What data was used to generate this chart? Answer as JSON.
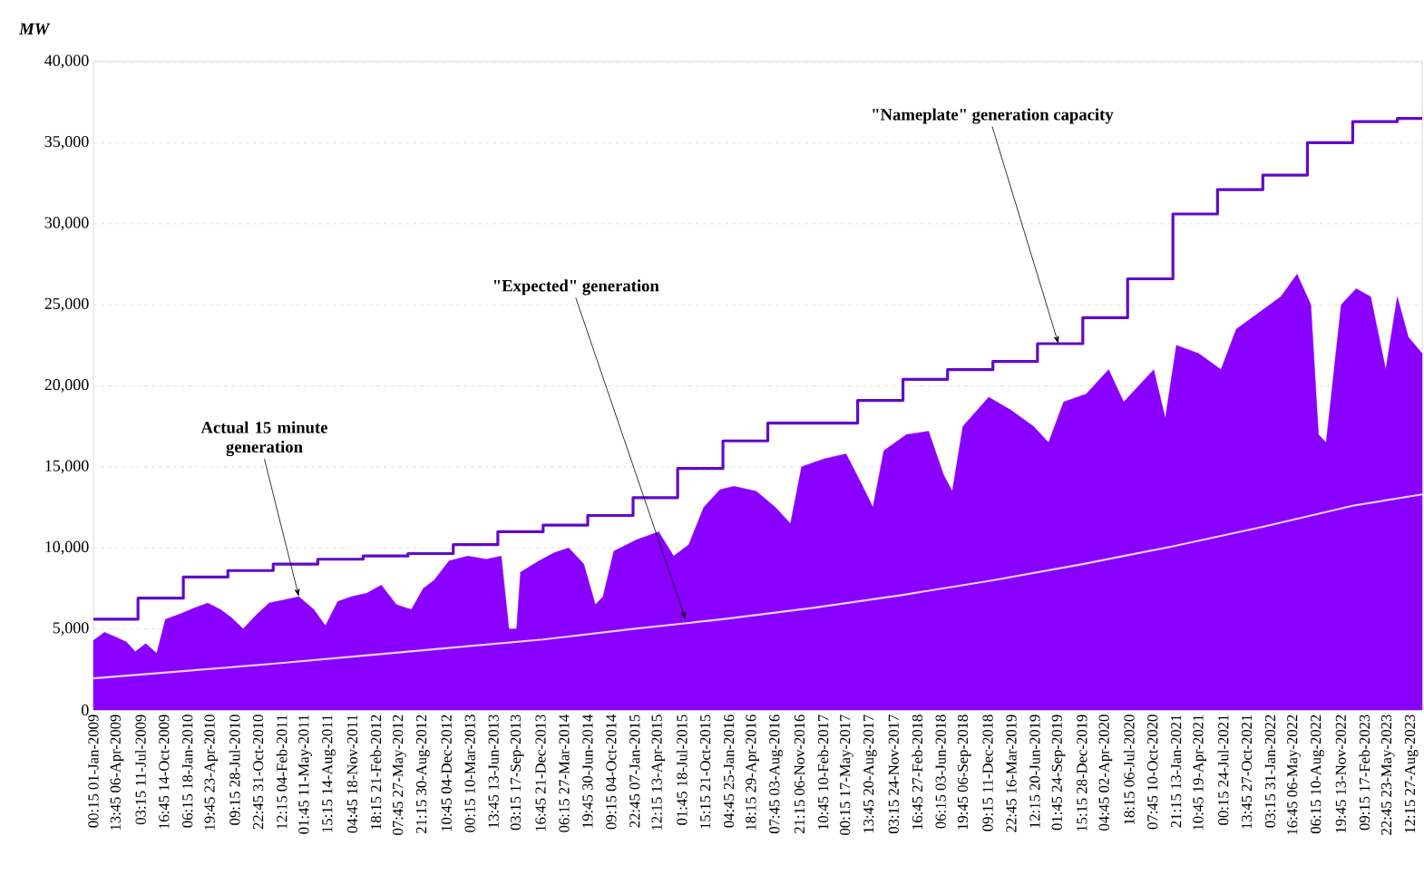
{
  "chart_data": {
    "type": "area",
    "ylabel": "MW",
    "xlim": [
      "2009-01-01",
      "2023-10-10"
    ],
    "ylim": [
      0,
      40000
    ],
    "yticks": [
      0,
      {
        "value": 5000,
        "label": "5,000"
      },
      {
        "value": 10000,
        "label": "10,000"
      },
      {
        "value": 15000,
        "label": "15,000"
      },
      {
        "value": 20000,
        "label": "20,000"
      },
      {
        "value": 25000,
        "label": "25,000"
      },
      {
        "value": 30000,
        "label": "30,000"
      },
      {
        "value": 35000,
        "label": "35,000"
      },
      {
        "value": 40000,
        "label": "40,000"
      }
    ],
    "xticks": [
      {
        "value": "2009-01-01T00:15",
        "label": "00:15 01-Jan-2009"
      },
      {
        "value": "2009-04-06T13:45",
        "label": "13:45 06-Apr-2009"
      },
      {
        "value": "2009-07-11T03:15",
        "label": "03:15 11-Jul-2009"
      },
      {
        "value": "2009-10-14T16:45",
        "label": "16:45 14-Oct-2009"
      },
      {
        "value": "2010-01-18T06:15",
        "label": "06:15 18-Jan-2010"
      },
      {
        "value": "2010-04-23T19:45",
        "label": "19:45 23-Apr-2010"
      },
      {
        "value": "2010-07-28T09:15",
        "label": "09:15 28-Jul-2010"
      },
      {
        "value": "2010-10-31T22:45",
        "label": "22:45 31-Oct-2010"
      },
      {
        "value": "2011-02-04T12:15",
        "label": "12:15 04-Feb-2011"
      },
      {
        "value": "2011-05-11T01:45",
        "label": "01:45 11-May-2011"
      },
      {
        "value": "2011-08-14T15:15",
        "label": "15:15 14-Aug-2011"
      },
      {
        "value": "2011-11-18T04:45",
        "label": "04:45 18-Nov-2011"
      },
      {
        "value": "2012-02-21T18:15",
        "label": "18:15 21-Feb-2012"
      },
      {
        "value": "2012-05-27T07:45",
        "label": "07:45 27-May-2012"
      },
      {
        "value": "2012-08-30T21:15",
        "label": "21:15 30-Aug-2012"
      },
      {
        "value": "2012-12-04T10:45",
        "label": "10:45 04-Dec-2012"
      },
      {
        "value": "2013-03-10T00:15",
        "label": "00:15 10-Mar-2013"
      },
      {
        "value": "2013-06-13T13:45",
        "label": "13:45 13-Jun-2013"
      },
      {
        "value": "2013-09-17T03:15",
        "label": "03:15 17-Sep-2013"
      },
      {
        "value": "2013-12-21T16:45",
        "label": "16:45 21-Dec-2013"
      },
      {
        "value": "2014-03-27T06:15",
        "label": "06:15 27-Mar-2014"
      },
      {
        "value": "2014-06-30T19:45",
        "label": "19:45 30-Jun-2014"
      },
      {
        "value": "2014-10-04T09:15",
        "label": "09:15 04-Oct-2014"
      },
      {
        "value": "2015-01-07T22:45",
        "label": "22:45 07-Jan-2015"
      },
      {
        "value": "2015-04-13T12:15",
        "label": "12:15 13-Apr-2015"
      },
      {
        "value": "2015-07-18T01:45",
        "label": "01:45 18-Jul-2015"
      },
      {
        "value": "2015-10-21T15:15",
        "label": "15:15 21-Oct-2015"
      },
      {
        "value": "2016-01-25T04:45",
        "label": "04:45 25-Jan-2016"
      },
      {
        "value": "2016-04-29T18:15",
        "label": "18:15 29-Apr-2016"
      },
      {
        "value": "2016-08-03T07:45",
        "label": "07:45 03-Aug-2016"
      },
      {
        "value": "2016-11-06T21:15",
        "label": "21:15 06-Nov-2016"
      },
      {
        "value": "2017-02-10T10:45",
        "label": "10:45 10-Feb-2017"
      },
      {
        "value": "2017-05-17T00:15",
        "label": "00:15 17-May-2017"
      },
      {
        "value": "2017-08-20T13:45",
        "label": "13:45 20-Aug-2017"
      },
      {
        "value": "2017-11-24T03:15",
        "label": "03:15 24-Nov-2017"
      },
      {
        "value": "2018-02-27T16:45",
        "label": "16:45 27-Feb-2018"
      },
      {
        "value": "2018-06-03T06:15",
        "label": "06:15 03-Jun-2018"
      },
      {
        "value": "2018-09-06T19:45",
        "label": "19:45 06-Sep-2018"
      },
      {
        "value": "2018-12-11T09:15",
        "label": "09:15 11-Dec-2018"
      },
      {
        "value": "2019-03-16T22:45",
        "label": "22:45 16-Mar-2019"
      },
      {
        "value": "2019-06-20T12:15",
        "label": "12:15 20-Jun-2019"
      },
      {
        "value": "2019-09-24T01:45",
        "label": "01:45 24-Sep-2019"
      },
      {
        "value": "2019-12-28T15:15",
        "label": "15:15 28-Dec-2019"
      },
      {
        "value": "2020-04-02T04:45",
        "label": "04:45 02-Apr-2020"
      },
      {
        "value": "2020-07-06T18:15",
        "label": "18:15 06-Jul-2020"
      },
      {
        "value": "2020-10-10T07:45",
        "label": "07:45 10-Oct-2020"
      },
      {
        "value": "2021-01-13T21:15",
        "label": "21:15 13-Jan-2021"
      },
      {
        "value": "2021-04-19T10:45",
        "label": "10:45 19-Apr-2021"
      },
      {
        "value": "2021-07-24T00:15",
        "label": "00:15 24-Jul-2021"
      },
      {
        "value": "2021-10-27T13:45",
        "label": "13:45 27-Oct-2021"
      },
      {
        "value": "2022-01-31T03:15",
        "label": "03:15 31-Jan-2022"
      },
      {
        "value": "2022-05-06T16:45",
        "label": "16:45 06-May-2022"
      },
      {
        "value": "2022-08-10T06:15",
        "label": "06:15 10-Aug-2022"
      },
      {
        "value": "2022-11-13T19:45",
        "label": "19:45 13-Nov-2022"
      },
      {
        "value": "2023-02-17T09:15",
        "label": "09:15 17-Feb-2023"
      },
      {
        "value": "2023-05-23T22:45",
        "label": "22:45 23-May-2023"
      },
      {
        "value": "2023-08-27T12:15",
        "label": "12:15 27-Aug-2023"
      }
    ],
    "grid": "y",
    "series": [
      {
        "color": "#8a00ff",
        "x": [
          "2009-01-01",
          "2009-02-15",
          "2009-04-01",
          "2009-05-15",
          "2009-06-20",
          "2009-08-01",
          "2009-09-15",
          "2009-10-20",
          "2009-12-15",
          "2010-02-15",
          "2010-04-10",
          "2010-06-01",
          "2010-07-15",
          "2010-09-01",
          "2010-10-20",
          "2010-12-15",
          "2011-02-15",
          "2011-04-15",
          "2011-06-15",
          "2011-08-01",
          "2011-09-20",
          "2011-11-15",
          "2012-01-15",
          "2012-03-15",
          "2012-05-15",
          "2012-07-15",
          "2012-09-01",
          "2012-10-15",
          "2012-12-15",
          "2013-03-01",
          "2013-05-15",
          "2013-07-15",
          "2013-08-15",
          "2013-09-15",
          "2013-10-01",
          "2013-12-15",
          "2014-02-15",
          "2014-04-15",
          "2014-06-15",
          "2014-08-01",
          "2014-09-01",
          "2014-10-15",
          "2015-01-15",
          "2015-04-15",
          "2015-06-15",
          "2015-08-15",
          "2015-10-15",
          "2015-12-20",
          "2016-02-15",
          "2016-05-15",
          "2016-08-01",
          "2016-10-01",
          "2016-11-15",
          "2017-02-15",
          "2017-05-15",
          "2017-07-15",
          "2017-09-01",
          "2017-10-15",
          "2018-01-15",
          "2018-04-15",
          "2018-06-15",
          "2018-07-20",
          "2018-09-01",
          "2018-12-15",
          "2019-03-15",
          "2019-06-15",
          "2019-08-15",
          "2019-10-15",
          "2020-01-15",
          "2020-04-15",
          "2020-06-15",
          "2020-08-15",
          "2020-10-15",
          "2020-12-01",
          "2021-01-15",
          "2021-04-15",
          "2021-07-15",
          "2021-09-15",
          "2021-12-15",
          "2022-03-15",
          "2022-05-20",
          "2022-07-15",
          "2022-08-15",
          "2022-09-15",
          "2022-11-15",
          "2023-01-15",
          "2023-03-15",
          "2023-05-15",
          "2023-07-01",
          "2023-08-15",
          "2023-10-10"
        ],
        "values": [
          4300,
          4800,
          4500,
          4200,
          3600,
          4100,
          3500,
          5600,
          5900,
          6300,
          6600,
          6200,
          5700,
          5000,
          5800,
          6600,
          6800,
          7000,
          6200,
          5200,
          6700,
          7000,
          7200,
          7700,
          6500,
          6200,
          7500,
          8000,
          9200,
          9500,
          9300,
          9500,
          5000,
          5000,
          8500,
          9200,
          9700,
          10000,
          9000,
          6500,
          7000,
          9800,
          10500,
          11000,
          9500,
          10200,
          12500,
          13600,
          13800,
          13500,
          12500,
          11500,
          15000,
          15500,
          15800,
          14000,
          12500,
          16000,
          17000,
          17200,
          14500,
          13500,
          17500,
          19300,
          18500,
          17500,
          16500,
          19000,
          19500,
          21000,
          19000,
          20000,
          21000,
          18000,
          22500,
          22000,
          21000,
          23500,
          24500,
          25500,
          26900,
          25000,
          17000,
          16500,
          25000,
          26000,
          25500,
          21000,
          25500,
          23000,
          22000
        ]
      },
      {
        "type": "line",
        "color": "#e8d2ff",
        "x": [
          "2009-01-01",
          "2010-01-01",
          "2011-01-01",
          "2012-01-01",
          "2013-01-01",
          "2014-01-01",
          "2015-01-01",
          "2016-01-01",
          "2017-01-01",
          "2018-01-01",
          "2019-01-01",
          "2020-01-01",
          "2021-01-01",
          "2022-01-01",
          "2023-01-01",
          "2023-10-10"
        ],
        "values": [
          1950,
          2400,
          2850,
          3350,
          3850,
          4350,
          5000,
          5600,
          6300,
          7100,
          8000,
          9000,
          10100,
          11300,
          12600,
          13300
        ]
      },
      {
        "type": "step",
        "color": "#6209c8",
        "x": [
          "2009-01-01",
          "2009-07-01",
          "2010-01-01",
          "2010-07-01",
          "2011-01-01",
          "2011-07-01",
          "2012-01-01",
          "2012-07-01",
          "2013-01-01",
          "2013-07-01",
          "2014-01-01",
          "2014-07-01",
          "2015-01-01",
          "2015-07-01",
          "2016-01-01",
          "2016-07-01",
          "2017-01-01",
          "2017-07-01",
          "2018-01-01",
          "2018-07-01",
          "2019-01-01",
          "2019-07-01",
          "2020-01-01",
          "2020-07-01",
          "2021-01-01",
          "2021-07-01",
          "2022-01-01",
          "2022-07-01",
          "2023-01-01",
          "2023-07-01",
          "2023-10-10"
        ],
        "values": [
          5600,
          6900,
          8200,
          8600,
          9000,
          9300,
          9500,
          9650,
          10200,
          11000,
          11400,
          12000,
          13100,
          14900,
          16600,
          17700,
          17700,
          19100,
          20400,
          21000,
          21500,
          22600,
          24200,
          26600,
          30600,
          32100,
          33000,
          35000,
          36300,
          36500,
          36500
        ]
      }
    ],
    "annotations": [
      {
        "text": "Actual 15 minute generation",
        "x": "2011-04-15",
        "y": 7000
      },
      {
        "text": "\"Expected\" generation",
        "x": "2015-08-02",
        "y": 5600
      },
      {
        "text": "\"Nameplate\" generation capacity",
        "x": "2019-09-24",
        "y": 22600
      }
    ]
  }
}
